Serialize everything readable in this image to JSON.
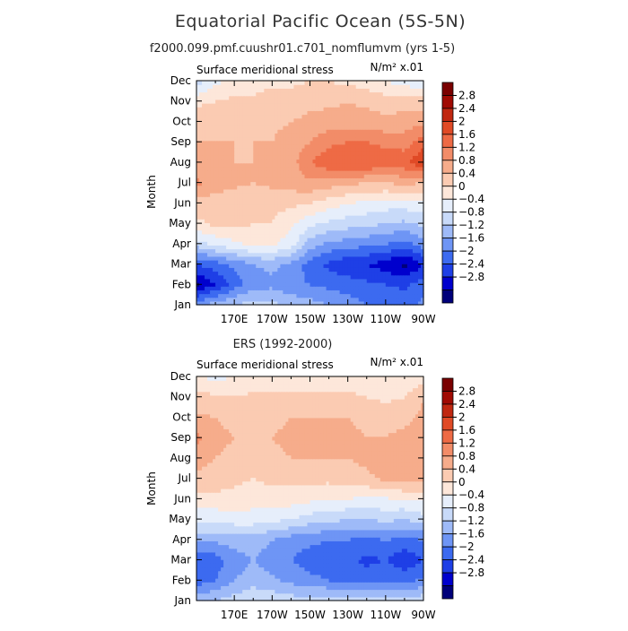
{
  "page": {
    "title": "Equatorial Pacific Ocean (5S-5N)",
    "subtitle": "f2000.099.pmf.cuushr01.c701_nomflumvm (yrs 1-5)"
  },
  "colors": {
    "levels": [
      "#00007a",
      "#0000cd",
      "#1e3fe6",
      "#3c6af0",
      "#6e95f5",
      "#9ebaf8",
      "#c8daf9",
      "#e6eefb",
      "#fde7da",
      "#fbcbb2",
      "#f6ac8b",
      "#f28c68",
      "#ee6a45",
      "#e04a26",
      "#c02710",
      "#a00a03",
      "#7a0000"
    ]
  },
  "chart_data": [
    {
      "type": "contour",
      "name": "model",
      "label_left": "Surface meridional stress",
      "label_right": "N/m² x.01",
      "ylabel": "Month",
      "months": [
        "Jan",
        "Feb",
        "Mar",
        "Apr",
        "May",
        "Jun",
        "Jul",
        "Aug",
        "Sep",
        "Oct",
        "Nov",
        "Dec"
      ],
      "x_ticks": [
        "170E",
        "170W",
        "150W",
        "130W",
        "110W",
        "90W"
      ],
      "x_range_deg_east": [
        150,
        270
      ],
      "color_levels": [
        -2.8,
        -2.4,
        -2,
        -1.6,
        -1.2,
        -0.8,
        -0.4,
        0,
        0.4,
        0.8,
        1.2,
        1.6,
        2,
        2.4,
        2.8
      ],
      "colorbar_labels": [
        "2.8",
        "2.4",
        "2",
        "1.6",
        "1.2",
        "0.8",
        "0.4",
        "0",
        "−0.4",
        "−0.8",
        "−1.2",
        "−1.6",
        "−2",
        "−2.4",
        "−2.8"
      ],
      "lon": [
        150,
        160,
        170,
        180,
        190,
        200,
        210,
        220,
        230,
        240,
        250,
        260,
        270
      ],
      "values": [
        [
          -1.3,
          -1.0,
          -0.8,
          -0.6,
          -0.7,
          -0.9,
          -1.0,
          -1.2,
          -1.4,
          -1.6,
          -1.6,
          -1.7,
          -1.5
        ],
        [
          -2.9,
          -2.4,
          -1.8,
          -1.4,
          -1.3,
          -1.5,
          -1.6,
          -1.7,
          -1.8,
          -1.9,
          -2.0,
          -2.1,
          -1.8
        ],
        [
          -2.0,
          -1.8,
          -1.5,
          -1.2,
          -1.1,
          -1.3,
          -1.8,
          -2.1,
          -2.3,
          -2.4,
          -2.6,
          -2.9,
          -2.4
        ],
        [
          -0.6,
          -0.3,
          -0.1,
          0.1,
          0.05,
          -0.2,
          -1.0,
          -1.3,
          -1.4,
          -1.5,
          -1.6,
          -1.8,
          -1.4
        ],
        [
          0.3,
          0.5,
          0.5,
          0.4,
          0.4,
          0.1,
          -0.3,
          -0.5,
          -0.6,
          -0.7,
          -0.8,
          -0.9,
          -0.7
        ],
        [
          0.6,
          0.6,
          0.5,
          0.4,
          0.5,
          0.5,
          0.4,
          0.2,
          0.0,
          -0.1,
          -0.2,
          -0.2,
          -0.1
        ],
        [
          1.3,
          1.0,
          0.9,
          0.8,
          0.9,
          1.0,
          1.1,
          1.0,
          0.9,
          0.8,
          0.8,
          0.9,
          0.8
        ],
        [
          1.0,
          0.9,
          0.8,
          0.8,
          0.9,
          1.0,
          1.6,
          1.9,
          2.0,
          2.0,
          1.8,
          1.9,
          2.4
        ],
        [
          0.8,
          0.8,
          0.8,
          0.8,
          0.8,
          1.0,
          1.2,
          1.5,
          1.6,
          1.6,
          1.5,
          1.4,
          1.8
        ],
        [
          0.7,
          0.7,
          0.7,
          0.7,
          0.7,
          0.8,
          0.9,
          1.0,
          1.0,
          1.0,
          0.9,
          1.0,
          1.1
        ],
        [
          0.3,
          0.4,
          0.5,
          0.5,
          0.6,
          0.6,
          0.7,
          0.7,
          0.8,
          0.7,
          0.6,
          0.6,
          0.6
        ],
        [
          -0.6,
          -0.1,
          0.1,
          0.2,
          0.3,
          0.3,
          0.4,
          0.4,
          0.3,
          0.2,
          0.0,
          -0.2,
          -0.3
        ]
      ]
    },
    {
      "type": "contour",
      "name": "observed",
      "title": "ERS (1992-2000)",
      "label_left": "Surface meridional stress",
      "label_right": "N/m² x.01",
      "ylabel": "Month",
      "months": [
        "Jan",
        "Feb",
        "Mar",
        "Apr",
        "May",
        "Jun",
        "Jul",
        "Aug",
        "Sep",
        "Oct",
        "Nov",
        "Dec"
      ],
      "x_ticks": [
        "170E",
        "170W",
        "150W",
        "130W",
        "110W",
        "90W"
      ],
      "x_range_deg_east": [
        150,
        270
      ],
      "color_levels": [
        -2.8,
        -2.4,
        -2,
        -1.6,
        -1.2,
        -0.8,
        -0.4,
        0,
        0.4,
        0.8,
        1.2,
        1.6,
        2,
        2.4,
        2.8
      ],
      "colorbar_labels": [
        "2.8",
        "2.4",
        "2",
        "1.6",
        "1.2",
        "0.8",
        "0.4",
        "0",
        "−0.4",
        "−0.8",
        "−1.2",
        "−1.6",
        "−2",
        "−2.4",
        "−2.8"
      ],
      "lon": [
        150,
        160,
        170,
        180,
        190,
        200,
        210,
        220,
        230,
        240,
        250,
        260,
        270
      ],
      "values": [
        [
          -0.9,
          -0.8,
          -0.6,
          -0.4,
          -0.5,
          -0.6,
          -0.6,
          -0.5,
          -0.6,
          -0.6,
          -0.7,
          -0.6,
          -0.5
        ],
        [
          -1.8,
          -1.6,
          -1.2,
          -1.0,
          -1.1,
          -1.3,
          -1.5,
          -1.6,
          -1.7,
          -1.8,
          -1.6,
          -1.7,
          -1.5
        ],
        [
          -2.0,
          -1.8,
          -1.4,
          -1.2,
          -1.4,
          -1.6,
          -1.8,
          -1.8,
          -1.9,
          -2.1,
          -2.0,
          -2.3,
          -2.0
        ],
        [
          -1.1,
          -1.1,
          -1.0,
          -1.0,
          -1.2,
          -1.4,
          -1.5,
          -1.6,
          -1.6,
          -1.7,
          -1.6,
          -1.7,
          -1.6
        ],
        [
          -0.3,
          -0.3,
          -0.2,
          -0.2,
          -0.3,
          -0.4,
          -0.6,
          -0.7,
          -0.8,
          -0.8,
          -0.7,
          -0.8,
          -0.6
        ],
        [
          0.3,
          0.3,
          0.25,
          0.2,
          0.25,
          0.2,
          0.1,
          0.05,
          0.0,
          -0.1,
          -0.05,
          0.0,
          0.1
        ],
        [
          0.7,
          0.6,
          0.5,
          0.4,
          0.5,
          0.5,
          0.5,
          0.5,
          0.6,
          0.7,
          0.9,
          1.0,
          0.9
        ],
        [
          1.0,
          0.8,
          0.7,
          0.6,
          0.7,
          0.8,
          0.8,
          0.8,
          0.8,
          0.9,
          1.1,
          1.2,
          1.1
        ],
        [
          1.3,
          0.9,
          0.8,
          0.7,
          0.8,
          0.9,
          0.9,
          0.9,
          0.9,
          0.8,
          0.8,
          0.9,
          1.0
        ],
        [
          0.9,
          0.8,
          0.7,
          0.7,
          0.7,
          0.8,
          0.8,
          0.8,
          0.8,
          0.7,
          0.7,
          0.7,
          0.9
        ],
        [
          0.5,
          0.5,
          0.4,
          0.5,
          0.5,
          0.5,
          0.5,
          0.5,
          0.5,
          0.4,
          0.3,
          0.4,
          0.8
        ],
        [
          0.0,
          -0.1,
          0.0,
          0.1,
          0.1,
          0.1,
          0.0,
          0.1,
          0.2,
          0.1,
          0.0,
          0.1,
          0.2
        ]
      ]
    }
  ]
}
